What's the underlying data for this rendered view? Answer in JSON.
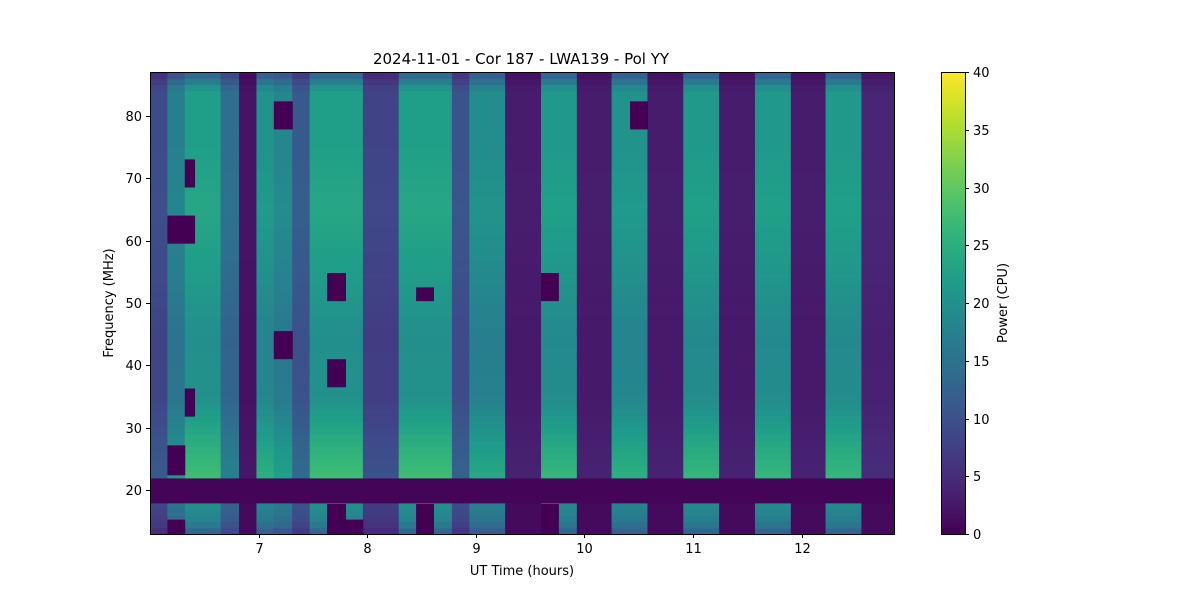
{
  "chart_data": {
    "type": "heatmap",
    "title": "2024-11-01 - Cor 187 - LWA139 - Pol YY",
    "xlabel": "UT Time (hours)",
    "ylabel": "Frequency (MHz)",
    "colorbar_label": "Power (CPU)",
    "xlim": [
      6.0,
      12.85
    ],
    "ylim": [
      13.0,
      87.0
    ],
    "clim": [
      0,
      40
    ],
    "colormap": "viridis",
    "x_ticks": [
      7,
      8,
      9,
      10,
      11,
      12
    ],
    "y_ticks": [
      20,
      30,
      40,
      50,
      60,
      70,
      80
    ],
    "colorbar_ticks": [
      0,
      5,
      10,
      15,
      20,
      25,
      30,
      35,
      40
    ],
    "time_columns": [
      {
        "start": 6.0,
        "end": 6.16,
        "power": 9
      },
      {
        "start": 6.16,
        "end": 6.32,
        "power": 17
      },
      {
        "start": 6.32,
        "end": 6.65,
        "power": 22
      },
      {
        "start": 6.65,
        "end": 6.82,
        "power": 14
      },
      {
        "start": 6.82,
        "end": 6.98,
        "power": 2
      },
      {
        "start": 6.98,
        "end": 7.14,
        "power": 20
      },
      {
        "start": 7.14,
        "end": 7.31,
        "power": 18
      },
      {
        "start": 7.31,
        "end": 7.47,
        "power": 11
      },
      {
        "start": 7.47,
        "end": 7.96,
        "power": 22
      },
      {
        "start": 7.96,
        "end": 8.29,
        "power": 8
      },
      {
        "start": 8.29,
        "end": 8.78,
        "power": 22
      },
      {
        "start": 8.78,
        "end": 8.94,
        "power": 10
      },
      {
        "start": 8.94,
        "end": 9.27,
        "power": 19
      },
      {
        "start": 9.27,
        "end": 9.6,
        "power": 3
      },
      {
        "start": 9.6,
        "end": 9.93,
        "power": 21
      },
      {
        "start": 9.93,
        "end": 10.25,
        "power": 3
      },
      {
        "start": 10.25,
        "end": 10.58,
        "power": 20
      },
      {
        "start": 10.58,
        "end": 10.91,
        "power": 3
      },
      {
        "start": 10.91,
        "end": 11.24,
        "power": 21
      },
      {
        "start": 11.24,
        "end": 11.57,
        "power": 3
      },
      {
        "start": 11.57,
        "end": 11.9,
        "power": 21
      },
      {
        "start": 11.9,
        "end": 12.22,
        "power": 3
      },
      {
        "start": 12.22,
        "end": 12.55,
        "power": 21
      },
      {
        "start": 12.55,
        "end": 12.85,
        "power": 4
      }
    ],
    "frequency_profile": [
      {
        "freq": 13.0,
        "factor": 0.55
      },
      {
        "freq": 15.0,
        "factor": 0.8
      },
      {
        "freq": 17.5,
        "factor": 0.9
      },
      {
        "freq": 22.5,
        "factor": 1.25
      },
      {
        "freq": 25.0,
        "factor": 1.2
      },
      {
        "freq": 28.0,
        "factor": 1.12
      },
      {
        "freq": 35.0,
        "factor": 0.92
      },
      {
        "freq": 45.0,
        "factor": 0.9
      },
      {
        "freq": 55.0,
        "factor": 1.0
      },
      {
        "freq": 65.0,
        "factor": 1.08
      },
      {
        "freq": 75.0,
        "factor": 1.02
      },
      {
        "freq": 84.0,
        "factor": 1.02
      },
      {
        "freq": 87.0,
        "factor": 0.55
      }
    ],
    "rfi_band": {
      "freq_min": 17.8,
      "freq_max": 22.4,
      "power": 0.5
    },
    "low_band_power_at_dark_columns": 1,
    "dropouts": [
      {
        "t0": 6.16,
        "t1": 6.32,
        "f0": 59.5,
        "f1": 64.0
      },
      {
        "t0": 6.32,
        "t1": 6.41,
        "f0": 59.5,
        "f1": 64.0
      },
      {
        "t0": 6.32,
        "t1": 6.41,
        "f0": 68.5,
        "f1": 73.0
      },
      {
        "t0": 6.32,
        "t1": 6.41,
        "f0": 31.8,
        "f1": 36.3
      },
      {
        "t0": 6.16,
        "t1": 6.32,
        "f0": 22.4,
        "f1": 27.2
      },
      {
        "t0": 6.16,
        "t1": 6.32,
        "f0": 13.0,
        "f1": 15.3
      },
      {
        "t0": 7.14,
        "t1": 7.31,
        "f0": 77.8,
        "f1": 82.3
      },
      {
        "t0": 7.14,
        "t1": 7.31,
        "f0": 41.0,
        "f1": 45.5
      },
      {
        "t0": 7.63,
        "t1": 7.8,
        "f0": 50.3,
        "f1": 54.8
      },
      {
        "t0": 7.63,
        "t1": 7.8,
        "f0": 36.5,
        "f1": 41.0
      },
      {
        "t0": 7.63,
        "t1": 7.8,
        "f0": 13.0,
        "f1": 17.8
      },
      {
        "t0": 7.8,
        "t1": 7.96,
        "f0": 13.0,
        "f1": 15.3
      },
      {
        "t0": 8.45,
        "t1": 8.61,
        "f0": 50.3,
        "f1": 52.5
      },
      {
        "t0": 8.45,
        "t1": 8.61,
        "f0": 13.0,
        "f1": 17.8
      },
      {
        "t0": 9.6,
        "t1": 9.76,
        "f0": 50.3,
        "f1": 54.8
      },
      {
        "t0": 9.6,
        "t1": 9.76,
        "f0": 13.0,
        "f1": 17.8
      },
      {
        "t0": 10.42,
        "t1": 10.58,
        "f0": 77.8,
        "f1": 82.3
      }
    ]
  }
}
